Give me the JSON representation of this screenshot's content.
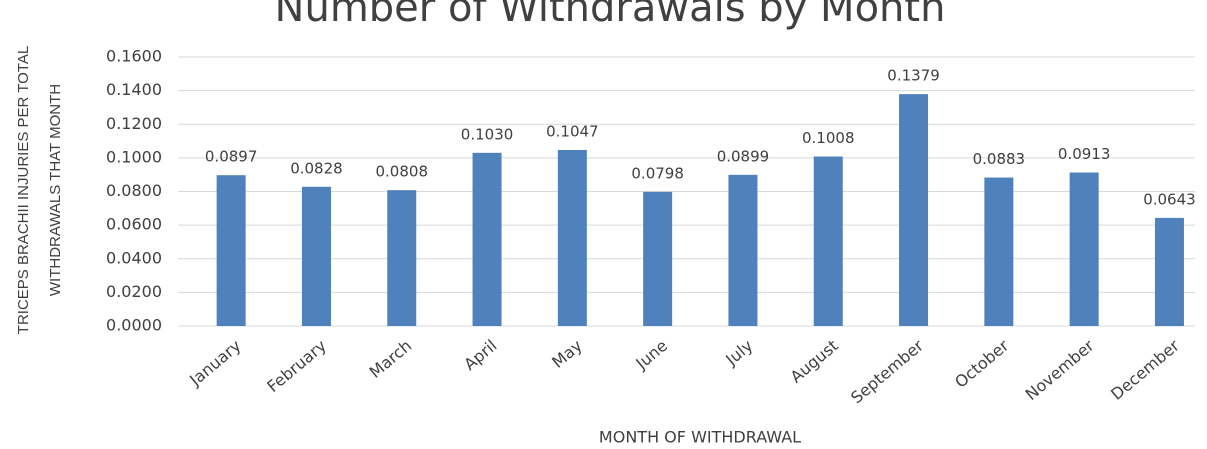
{
  "chart_data": {
    "type": "bar",
    "title": "Number of Withdrawals by Month",
    "y_label": [
      "TRICEPS BRACHII INJURIES PER TOTAL",
      "WITHDRAWALS THAT MONTH"
    ],
    "x_label": "MONTH OF WITHDRAWAL",
    "categories": [
      "January",
      "February",
      "March",
      "April",
      "May",
      "June",
      "July",
      "August",
      "September",
      "October",
      "November",
      "December"
    ],
    "values": [
      0.0897,
      0.0828,
      0.0808,
      0.103,
      0.1047,
      0.0798,
      0.0899,
      0.1008,
      0.1379,
      0.0883,
      0.0913,
      0.0643
    ],
    "value_labels": [
      "0.0897",
      "0.0828",
      "0.0808",
      "0.1030",
      "0.1047",
      "0.0798",
      "0.0899",
      "0.1008",
      "0.1379",
      "0.0883",
      "0.0913",
      "0.0643"
    ],
    "color": "#4f81bd",
    "ylim": [
      0,
      0.16
    ],
    "yticks": [
      {
        "value": 0,
        "label": "0.0000"
      },
      {
        "value": 0.02,
        "label": "0.0200"
      },
      {
        "value": 0.04,
        "label": "0.0400"
      },
      {
        "value": 0.06,
        "label": "0.0600"
      },
      {
        "value": 0.08,
        "label": "0.0800"
      },
      {
        "value": 0.1,
        "label": "0.1000"
      },
      {
        "value": 0.12,
        "label": "0.1200"
      },
      {
        "value": 0.14,
        "label": "0.1400"
      },
      {
        "value": 0.16,
        "label": "0.1600"
      }
    ],
    "grid": true
  }
}
